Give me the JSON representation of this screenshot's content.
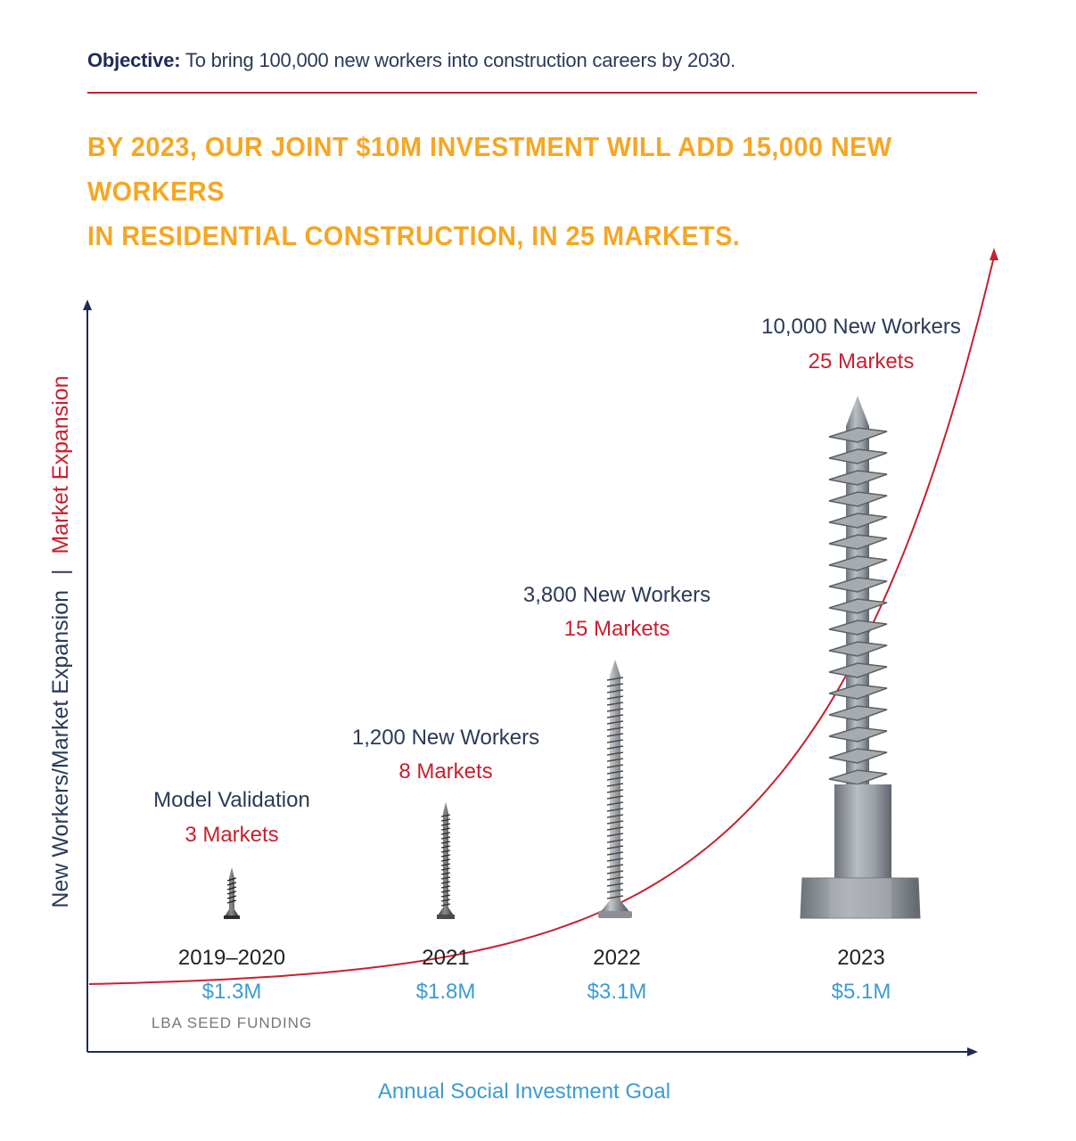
{
  "objective": {
    "label": "Objective:",
    "text": "To bring 100,000 new workers into construction careers by 2030."
  },
  "headline": {
    "line1": "By 2023, our joint $10M investment will add 15,000 new workers",
    "line2": "in residential construction, in 25 markets."
  },
  "colors": {
    "navy": "#2b3a55",
    "red": "#c8202f",
    "blue": "#3c9cd2",
    "orange": "#f6a623"
  },
  "chart_data": {
    "type": "area",
    "xlabel": "Annual Social Investment Goal",
    "ylabel_part1": "New Workers/Market Expansion",
    "ylabel_sep": "|",
    "ylabel_part2": "Market Expansion",
    "categories": [
      "2019–2020",
      "2021",
      "2022",
      "2023"
    ],
    "investment": [
      "$1.3M",
      "$1.8M",
      "$3.1M",
      "$5.1M"
    ],
    "investment_musd": [
      1.3,
      1.8,
      3.1,
      5.1
    ],
    "sub_note": "LBA SEED FUNDING",
    "workers_labels": [
      "Model Validation",
      "1,200 New Workers",
      "3,800 New Workers",
      "10,000 New Workers"
    ],
    "new_workers": [
      null,
      1200,
      3800,
      10000
    ],
    "markets_labels": [
      "3 Markets",
      "8 Markets",
      "15 Markets",
      "25 Markets"
    ],
    "markets": [
      3,
      8,
      15,
      25
    ],
    "series": [
      {
        "values": [
          3,
          8,
          15,
          25
        ]
      }
    ],
    "icons": [
      "small-screw-icon",
      "long-screw-icon",
      "wood-screw-icon",
      "lag-bolt-icon"
    ],
    "curve": "exponential"
  }
}
